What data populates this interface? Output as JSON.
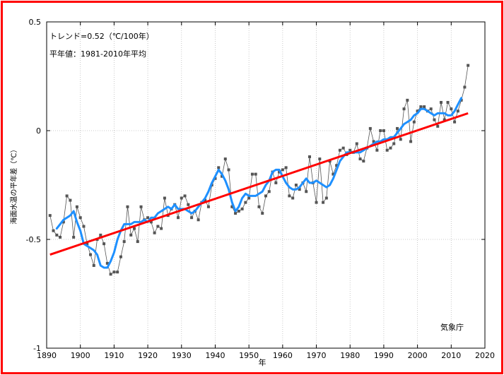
{
  "chart_data": {
    "type": "line",
    "title": "",
    "xlabel": "年",
    "ylabel": "海面水温の平年差（℃）",
    "annotations": {
      "trend": "トレンド=0.52（℃/100年）",
      "baseline": "平年値：1981-2010年平均",
      "source": "気象庁"
    },
    "xlim": [
      1890,
      2020
    ],
    "ylim": [
      -1,
      0.5
    ],
    "x_ticks": [
      1890,
      1900,
      1910,
      1920,
      1930,
      1940,
      1950,
      1960,
      1970,
      1980,
      1990,
      2000,
      2010,
      2020
    ],
    "y_ticks": [
      -1,
      -0.5,
      0,
      0.5
    ],
    "y_tick_labels": [
      "-1",
      "-0.5",
      "0",
      "0.5"
    ],
    "grid": true,
    "series": [
      {
        "kind": "annual",
        "color": "#555555",
        "x": [
          1891,
          1892,
          1893,
          1894,
          1895,
          1896,
          1897,
          1898,
          1899,
          1900,
          1901,
          1902,
          1903,
          1904,
          1905,
          1906,
          1907,
          1908,
          1909,
          1910,
          1911,
          1912,
          1913,
          1914,
          1915,
          1916,
          1917,
          1918,
          1919,
          1920,
          1921,
          1922,
          1923,
          1924,
          1925,
          1926,
          1927,
          1928,
          1929,
          1930,
          1931,
          1932,
          1933,
          1934,
          1935,
          1936,
          1937,
          1938,
          1939,
          1940,
          1941,
          1942,
          1943,
          1944,
          1945,
          1946,
          1947,
          1948,
          1949,
          1950,
          1951,
          1952,
          1953,
          1954,
          1955,
          1956,
          1957,
          1958,
          1959,
          1960,
          1961,
          1962,
          1963,
          1964,
          1965,
          1966,
          1967,
          1968,
          1969,
          1970,
          1971,
          1972,
          1973,
          1974,
          1975,
          1976,
          1977,
          1978,
          1979,
          1980,
          1981,
          1982,
          1983,
          1984,
          1985,
          1986,
          1987,
          1988,
          1989,
          1990,
          1991,
          1992,
          1993,
          1994,
          1995,
          1996,
          1997,
          1998,
          1999,
          2000,
          2001,
          2002,
          2003,
          2004,
          2005,
          2006,
          2007,
          2008,
          2009,
          2010,
          2011,
          2012,
          2013,
          2014,
          2015
        ],
        "y": [
          -0.39,
          -0.46,
          -0.48,
          -0.49,
          -0.42,
          -0.3,
          -0.32,
          -0.49,
          -0.35,
          -0.4,
          -0.44,
          -0.52,
          -0.57,
          -0.62,
          -0.5,
          -0.48,
          -0.52,
          -0.61,
          -0.66,
          -0.65,
          -0.65,
          -0.58,
          -0.51,
          -0.35,
          -0.48,
          -0.45,
          -0.51,
          -0.35,
          -0.41,
          -0.4,
          -0.42,
          -0.47,
          -0.44,
          -0.45,
          -0.31,
          -0.39,
          -0.36,
          -0.34,
          -0.4,
          -0.31,
          -0.3,
          -0.34,
          -0.4,
          -0.37,
          -0.41,
          -0.33,
          -0.32,
          -0.35,
          -0.25,
          -0.22,
          -0.17,
          -0.21,
          -0.13,
          -0.18,
          -0.35,
          -0.38,
          -0.37,
          -0.36,
          -0.33,
          -0.31,
          -0.2,
          -0.2,
          -0.35,
          -0.38,
          -0.3,
          -0.28,
          -0.19,
          -0.24,
          -0.19,
          -0.18,
          -0.17,
          -0.3,
          -0.31,
          -0.25,
          -0.27,
          -0.24,
          -0.28,
          -0.12,
          -0.24,
          -0.33,
          -0.13,
          -0.33,
          -0.31,
          -0.14,
          -0.2,
          -0.16,
          -0.09,
          -0.08,
          -0.11,
          -0.09,
          -0.1,
          -0.06,
          -0.13,
          -0.14,
          -0.08,
          0.01,
          -0.05,
          -0.09,
          0,
          0,
          -0.09,
          -0.08,
          -0.06,
          0.01,
          -0.04,
          0.1,
          0.14,
          -0.05,
          0.04,
          0.09,
          0.11,
          0.11,
          0.09,
          0.1,
          0.05,
          0.02,
          0.13,
          0.05,
          0.13,
          0.1,
          0.04,
          0.09,
          0.14,
          0.2,
          0.3
        ]
      },
      {
        "kind": "5-year running mean",
        "color": "#1e90ff",
        "x": [
          1893,
          1894,
          1895,
          1896,
          1897,
          1898,
          1899,
          1900,
          1901,
          1902,
          1903,
          1904,
          1905,
          1906,
          1907,
          1908,
          1909,
          1910,
          1911,
          1912,
          1913,
          1914,
          1915,
          1916,
          1917,
          1918,
          1919,
          1920,
          1921,
          1922,
          1923,
          1924,
          1925,
          1926,
          1927,
          1928,
          1929,
          1930,
          1931,
          1932,
          1933,
          1934,
          1935,
          1936,
          1937,
          1938,
          1939,
          1940,
          1941,
          1942,
          1943,
          1944,
          1945,
          1946,
          1947,
          1948,
          1949,
          1950,
          1951,
          1952,
          1953,
          1954,
          1955,
          1956,
          1957,
          1958,
          1959,
          1960,
          1961,
          1962,
          1963,
          1964,
          1965,
          1966,
          1967,
          1968,
          1969,
          1970,
          1971,
          1972,
          1973,
          1974,
          1975,
          1976,
          1977,
          1978,
          1979,
          1980,
          1981,
          1982,
          1983,
          1984,
          1985,
          1986,
          1987,
          1988,
          1989,
          1990,
          1991,
          1992,
          1993,
          1994,
          1995,
          1996,
          1997,
          1998,
          1999,
          2000,
          2001,
          2002,
          2003,
          2004,
          2005,
          2006,
          2007,
          2008,
          2009,
          2010,
          2011,
          2012,
          2013
        ],
        "y": [
          -0.45,
          -0.43,
          -0.41,
          -0.4,
          -0.39,
          -0.37,
          -0.42,
          -0.46,
          -0.52,
          -0.53,
          -0.54,
          -0.55,
          -0.57,
          -0.62,
          -0.63,
          -0.63,
          -0.6,
          -0.56,
          -0.5,
          -0.46,
          -0.43,
          -0.43,
          -0.43,
          -0.42,
          -0.42,
          -0.42,
          -0.41,
          -0.42,
          -0.4,
          -0.4,
          -0.38,
          -0.37,
          -0.36,
          -0.35,
          -0.36,
          -0.34,
          -0.36,
          -0.36,
          -0.36,
          -0.37,
          -0.38,
          -0.37,
          -0.35,
          -0.33,
          -0.31,
          -0.28,
          -0.24,
          -0.21,
          -0.18,
          -0.2,
          -0.23,
          -0.27,
          -0.33,
          -0.37,
          -0.35,
          -0.31,
          -0.29,
          -0.3,
          -0.3,
          -0.3,
          -0.29,
          -0.28,
          -0.25,
          -0.23,
          -0.19,
          -0.18,
          -0.18,
          -0.21,
          -0.24,
          -0.26,
          -0.27,
          -0.27,
          -0.26,
          -0.24,
          -0.22,
          -0.24,
          -0.24,
          -0.23,
          -0.24,
          -0.25,
          -0.26,
          -0.25,
          -0.22,
          -0.18,
          -0.14,
          -0.12,
          -0.1,
          -0.1,
          -0.1,
          -0.1,
          -0.1,
          -0.09,
          -0.08,
          -0.07,
          -0.06,
          -0.05,
          -0.05,
          -0.04,
          -0.04,
          -0.03,
          -0.03,
          -0.01,
          0.01,
          0.03,
          0.04,
          0.05,
          0.07,
          0.08,
          0.1,
          0.1,
          0.09,
          0.08,
          0.07,
          0.08,
          0.08,
          0.08,
          0.07,
          0.07,
          0.09,
          0.12,
          0.15
        ]
      },
      {
        "kind": "linear trend",
        "color": "#ff0000",
        "x": [
          1891,
          2015
        ],
        "y": [
          -0.57,
          0.08
        ]
      }
    ]
  }
}
